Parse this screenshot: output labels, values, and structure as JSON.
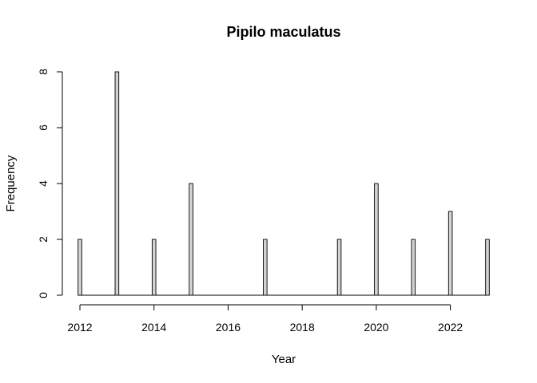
{
  "chart_data": {
    "type": "bar",
    "title": "Pipilo maculatus",
    "xlabel": "Year",
    "ylabel": "Frequency",
    "bin_width": 0.1,
    "x": [
      2012,
      2013,
      2014,
      2015,
      2017,
      2019,
      2020,
      2021,
      2022,
      2023
    ],
    "values": [
      2,
      8,
      2,
      4,
      2,
      2,
      4,
      2,
      3,
      2
    ],
    "xlim": [
      2012,
      2023
    ],
    "ylim": [
      0,
      8
    ],
    "x_ticks": [
      2012,
      2014,
      2016,
      2018,
      2020,
      2022
    ],
    "y_ticks": [
      0,
      2,
      4,
      6,
      8
    ],
    "bar_fill": "#d3d3d3",
    "grid": false,
    "legend": "none"
  }
}
